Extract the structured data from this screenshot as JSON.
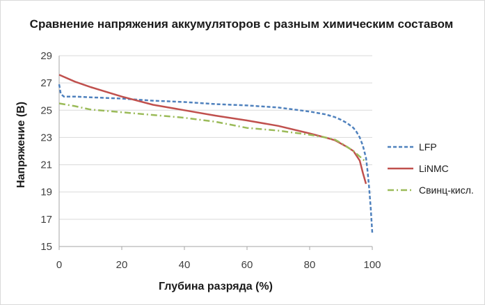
{
  "chart_data": {
    "type": "line",
    "title": "Сравнение напряжения аккумуляторов с разным химическим составом",
    "xlabel": "Глубина разряда (%)",
    "ylabel": "Напряжение (В)",
    "xlim": [
      0,
      100
    ],
    "ylim": [
      15,
      29
    ],
    "xticks": [
      "0",
      "20",
      "40",
      "60",
      "80",
      "100"
    ],
    "yticks": [
      "15",
      "17",
      "19",
      "21",
      "23",
      "25",
      "27",
      "29"
    ],
    "grid": "horizontal",
    "legend_position": "right",
    "series": [
      {
        "name": "LFP",
        "color": "#4f81bd",
        "dash": "dashed",
        "x": [
          0,
          0.5,
          1.5,
          5,
          10,
          20,
          30,
          40,
          50,
          60,
          70,
          75,
          80,
          85,
          88,
          90,
          92,
          94,
          95,
          96,
          97,
          98,
          98.5,
          99,
          99.5,
          100
        ],
        "y": [
          26.9,
          26.2,
          26.0,
          26.0,
          25.95,
          25.85,
          25.7,
          25.6,
          25.45,
          25.35,
          25.2,
          25.05,
          24.9,
          24.7,
          24.5,
          24.3,
          24.05,
          23.7,
          23.4,
          23.0,
          22.4,
          21.5,
          20.5,
          19.3,
          17.8,
          16.0
        ]
      },
      {
        "name": "LiNMC",
        "color": "#c0504d",
        "dash": "solid",
        "x": [
          0,
          5,
          10,
          20,
          30,
          40,
          50,
          60,
          70,
          80,
          85,
          88,
          90,
          92,
          94,
          96,
          97,
          98
        ],
        "y": [
          27.6,
          27.1,
          26.7,
          26.0,
          25.4,
          25.0,
          24.6,
          24.25,
          23.85,
          23.3,
          23.0,
          22.8,
          22.55,
          22.3,
          22.0,
          21.3,
          20.4,
          19.6
        ]
      },
      {
        "name": "Свинц-кисл.",
        "color": "#9bbb59",
        "dash": "dashdot",
        "x": [
          0,
          5,
          10,
          20,
          30,
          40,
          50,
          60,
          70,
          80,
          85,
          88,
          90,
          92,
          94,
          96,
          98
        ],
        "y": [
          25.5,
          25.3,
          25.05,
          24.85,
          24.65,
          24.45,
          24.15,
          23.7,
          23.5,
          23.2,
          23.0,
          22.85,
          22.6,
          22.3,
          22.0,
          21.6,
          21.2
        ]
      }
    ]
  }
}
